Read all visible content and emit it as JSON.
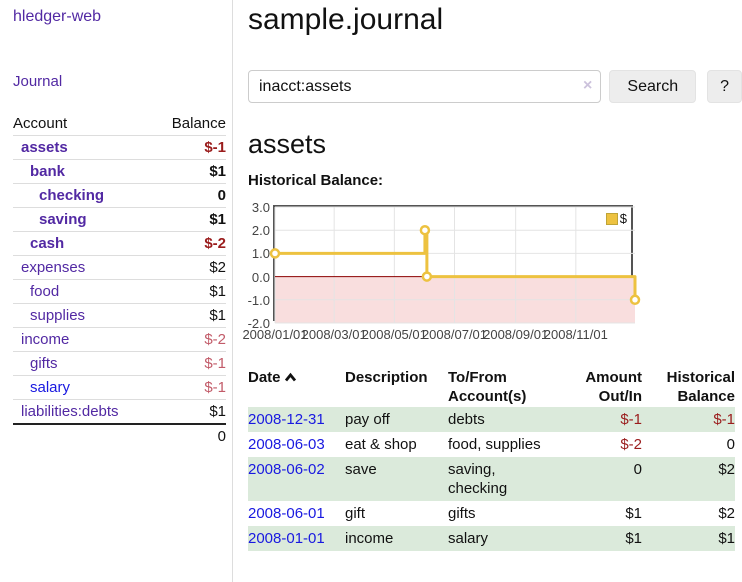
{
  "colors": {
    "link_purple": "#5229A3",
    "link_blue": "#1919E0",
    "negative_strong": "#9A1C1C",
    "negative_soft": "#C25B69",
    "stripe_green": "#DBEADB",
    "series_yellow": "#EDC240"
  },
  "sidebar": {
    "brand": "hledger-web",
    "nav_journal": "Journal",
    "accounts_table": {
      "headers": [
        "Account",
        "Balance"
      ],
      "rows": [
        {
          "account": "assets",
          "balance": "$-1",
          "indent": 1,
          "bold": true,
          "balance_style": "neg-strong"
        },
        {
          "account": "bank",
          "balance": "$1",
          "indent": 2,
          "bold": true,
          "balance_style": "pos"
        },
        {
          "account": "checking",
          "balance": "0",
          "indent": 3,
          "bold": true,
          "balance_style": "pos"
        },
        {
          "account": "saving",
          "balance": "$1",
          "indent": 3,
          "bold": true,
          "balance_style": "pos"
        },
        {
          "account": "cash",
          "balance": "$-2",
          "indent": 2,
          "bold": true,
          "balance_style": "neg-strong"
        },
        {
          "account": "expenses",
          "balance": "$2",
          "indent": 1,
          "bold": false,
          "balance_style": "pos"
        },
        {
          "account": "food",
          "balance": "$1",
          "indent": 2,
          "bold": false,
          "balance_style": "pos"
        },
        {
          "account": "supplies",
          "balance": "$1",
          "indent": 2,
          "bold": false,
          "balance_style": "pos"
        },
        {
          "account": "income",
          "balance": "$-2",
          "indent": 1,
          "bold": false,
          "balance_style": "neg-soft"
        },
        {
          "account": "gifts",
          "balance": "$-1",
          "indent": 2,
          "bold": false,
          "balance_style": "neg-soft"
        },
        {
          "account": "salary",
          "balance": "$-1",
          "indent": 2,
          "bold": false,
          "balance_style": "neg-soft",
          "link_color": "blue"
        },
        {
          "account": "liabilities:debts",
          "balance": "$1",
          "indent": 1,
          "bold": false,
          "balance_style": "pos"
        }
      ],
      "total": "0"
    }
  },
  "main": {
    "title": "sample.journal",
    "search": {
      "value": "inacct:assets",
      "clear_icon": "×",
      "button": "Search",
      "help": "?"
    },
    "account_heading": "assets",
    "chart_title": "Historical Balance:",
    "register": {
      "headers": {
        "date": "Date",
        "description": "Description",
        "tofrom": "To/From Account(s)",
        "amount": "Amount Out/In",
        "balance": "Historical Balance"
      },
      "rows": [
        {
          "date": "2008-12-31",
          "description": "pay off",
          "accounts": "debts",
          "amount": "$-1",
          "amount_style": "neg",
          "balance": "$-1",
          "balance_style": "neg"
        },
        {
          "date": "2008-06-03",
          "description": "eat & shop",
          "accounts": "food, supplies",
          "amount": "$-2",
          "amount_style": "neg",
          "balance": "0",
          "balance_style": "plain"
        },
        {
          "date": "2008-06-02",
          "description": "save",
          "accounts": "saving, checking",
          "amount": "0",
          "amount_style": "plain",
          "balance": "$2",
          "balance_style": "plain"
        },
        {
          "date": "2008-06-01",
          "description": "gift",
          "accounts": "gifts",
          "amount": "$1",
          "amount_style": "plain",
          "balance": "$2",
          "balance_style": "plain"
        },
        {
          "date": "2008-01-01",
          "description": "income",
          "accounts": "salary",
          "amount": "$1",
          "amount_style": "plain",
          "balance": "$1",
          "balance_style": "plain"
        }
      ]
    }
  },
  "chart_data": {
    "type": "line",
    "title": "Historical Balance",
    "step": true,
    "series": [
      {
        "name": "$",
        "color": "#EDC240",
        "points": [
          [
            "2008-01-01",
            1
          ],
          [
            "2008-06-01",
            2
          ],
          [
            "2008-06-03",
            0
          ],
          [
            "2008-12-31",
            -1
          ]
        ]
      }
    ],
    "x_start": "2008-01-01",
    "x_end": "2008-12-31",
    "x_ticks": [
      "2008/01/01",
      "2008/03/01",
      "2008/05/01",
      "2008/07/01",
      "2008/09/01",
      "2008/11/01"
    ],
    "y_ticks": [
      "3.0",
      "2.0",
      "1.0",
      "0.0",
      "-1.0",
      "-2.0"
    ],
    "ylim": [
      -2,
      3
    ],
    "grid": true,
    "legend": {
      "position": "top-right",
      "label": "$"
    },
    "negative_region_fill": "#F9DEDE",
    "zero_line_color": "#8B0000",
    "grid_color": "#E4E4E4",
    "border_color": "#545454"
  }
}
